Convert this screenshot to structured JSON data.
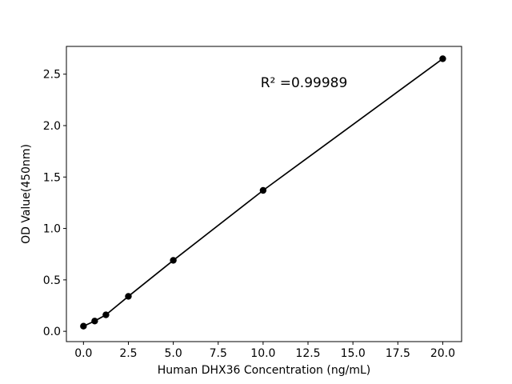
{
  "chart_data": {
    "type": "scatter",
    "title": "",
    "xlabel": "Human DHX36 Concentration (ng/mL)",
    "ylabel": "OD Value(450nm)",
    "annotation": {
      "text": "R² =0.99989"
    },
    "r_squared": 0.99989,
    "x": [
      0,
      0.625,
      1.25,
      2.5,
      5,
      10,
      20
    ],
    "y": [
      0.05,
      0.1,
      0.16,
      0.34,
      0.69,
      1.37,
      2.65
    ],
    "xtick_values": [
      0,
      2.5,
      5,
      7.5,
      10,
      12.5,
      15,
      17.5,
      20
    ],
    "xtick_labels": [
      "0.0",
      "2.5",
      "5.0",
      "7.5",
      "10.0",
      "12.5",
      "15.0",
      "17.5",
      "20.0"
    ],
    "ytick_values": [
      0,
      0.5,
      1.0,
      1.5,
      2.0,
      2.5
    ],
    "ytick_labels": [
      "0.0",
      "0.5",
      "1.0",
      "1.5",
      "2.0",
      "2.5"
    ],
    "xlim": [
      -0.95,
      21.05
    ],
    "ylim": [
      -0.1,
      2.77
    ],
    "grid": false,
    "legend": null,
    "colors": {
      "background": "#ffffff",
      "line": "#000000",
      "marker": "#000000",
      "axis": "#000000",
      "text": "#000000"
    }
  }
}
